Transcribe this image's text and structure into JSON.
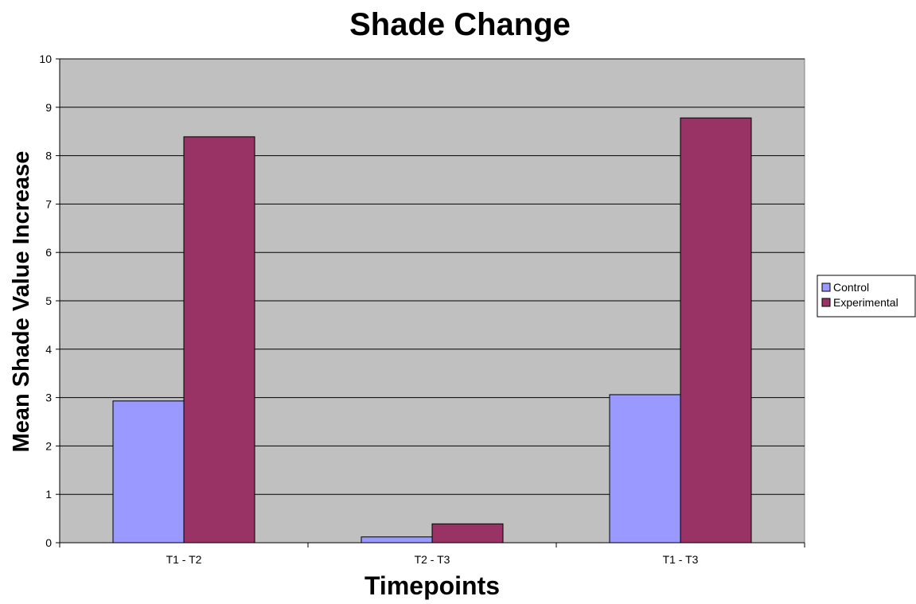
{
  "chart_data": {
    "type": "bar",
    "title": "Shade Change",
    "xlabel": "Timepoints",
    "ylabel": "Mean Shade Value Increase",
    "categories": [
      "T1 - T2",
      "T2 - T3",
      "T1 - T3"
    ],
    "series": [
      {
        "name": "Control",
        "values": [
          2.93,
          0.12,
          3.06
        ],
        "color": "#9999ff"
      },
      {
        "name": "Experimental",
        "values": [
          8.39,
          0.39,
          8.78
        ],
        "color": "#993366"
      }
    ],
    "ylim": [
      0,
      10
    ],
    "yticks": [
      0,
      1,
      2,
      3,
      4,
      5,
      6,
      7,
      8,
      9,
      10
    ],
    "grid": true,
    "legend_position": "right",
    "plot_background": "#c0c0c0"
  }
}
